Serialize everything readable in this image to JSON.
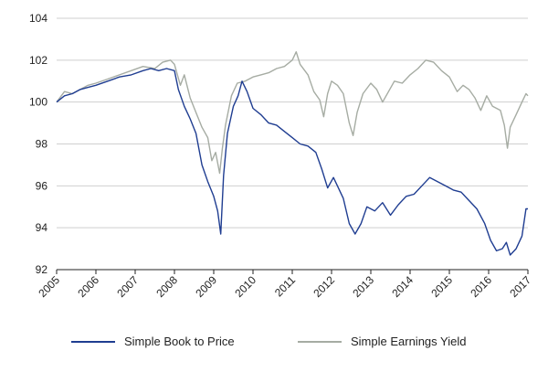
{
  "chart_data": {
    "type": "line",
    "title": "",
    "xlabel": "",
    "ylabel": "",
    "xlim": [
      2005,
      2017
    ],
    "ylim": [
      92,
      104
    ],
    "y_ticks": [
      92,
      94,
      96,
      98,
      100,
      102,
      104
    ],
    "x_ticks": [
      "2005",
      "2006",
      "2007",
      "2008",
      "2009",
      "2010",
      "2011",
      "2012",
      "2013",
      "2014",
      "2015",
      "2016",
      "2017"
    ],
    "grid": "horizontal",
    "legend_position": "bottom",
    "series": [
      {
        "name": "Simple Earnings Yield",
        "color": "#a6aca3",
        "points": [
          [
            2005.0,
            100.0
          ],
          [
            2005.2,
            100.5
          ],
          [
            2005.4,
            100.4
          ],
          [
            2005.6,
            100.6
          ],
          [
            2005.8,
            100.8
          ],
          [
            2006.0,
            100.9
          ],
          [
            2006.3,
            101.1
          ],
          [
            2006.6,
            101.3
          ],
          [
            2006.9,
            101.5
          ],
          [
            2007.2,
            101.7
          ],
          [
            2007.5,
            101.6
          ],
          [
            2007.7,
            101.9
          ],
          [
            2007.9,
            102.0
          ],
          [
            2008.0,
            101.8
          ],
          [
            2008.15,
            100.8
          ],
          [
            2008.25,
            101.3
          ],
          [
            2008.4,
            100.2
          ],
          [
            2008.55,
            99.5
          ],
          [
            2008.7,
            98.8
          ],
          [
            2008.85,
            98.3
          ],
          [
            2008.95,
            97.2
          ],
          [
            2009.05,
            97.6
          ],
          [
            2009.15,
            96.6
          ],
          [
            2009.22,
            97.8
          ],
          [
            2009.3,
            98.9
          ],
          [
            2009.45,
            100.3
          ],
          [
            2009.6,
            100.9
          ],
          [
            2009.8,
            101.0
          ],
          [
            2010.0,
            101.2
          ],
          [
            2010.2,
            101.3
          ],
          [
            2010.4,
            101.4
          ],
          [
            2010.6,
            101.6
          ],
          [
            2010.8,
            101.7
          ],
          [
            2011.0,
            102.0
          ],
          [
            2011.1,
            102.4
          ],
          [
            2011.2,
            101.8
          ],
          [
            2011.4,
            101.3
          ],
          [
            2011.55,
            100.5
          ],
          [
            2011.7,
            100.1
          ],
          [
            2011.8,
            99.3
          ],
          [
            2011.9,
            100.4
          ],
          [
            2012.0,
            101.0
          ],
          [
            2012.15,
            100.8
          ],
          [
            2012.3,
            100.4
          ],
          [
            2012.45,
            99.0
          ],
          [
            2012.55,
            98.4
          ],
          [
            2012.65,
            99.5
          ],
          [
            2012.8,
            100.4
          ],
          [
            2013.0,
            100.9
          ],
          [
            2013.15,
            100.6
          ],
          [
            2013.3,
            100.0
          ],
          [
            2013.45,
            100.5
          ],
          [
            2013.6,
            101.0
          ],
          [
            2013.8,
            100.9
          ],
          [
            2014.0,
            101.3
          ],
          [
            2014.2,
            101.6
          ],
          [
            2014.4,
            102.0
          ],
          [
            2014.6,
            101.9
          ],
          [
            2014.8,
            101.5
          ],
          [
            2015.0,
            101.2
          ],
          [
            2015.2,
            100.5
          ],
          [
            2015.35,
            100.8
          ],
          [
            2015.5,
            100.6
          ],
          [
            2015.65,
            100.2
          ],
          [
            2015.8,
            99.6
          ],
          [
            2015.95,
            100.3
          ],
          [
            2016.1,
            99.8
          ],
          [
            2016.3,
            99.6
          ],
          [
            2016.4,
            98.9
          ],
          [
            2016.48,
            97.8
          ],
          [
            2016.55,
            98.8
          ],
          [
            2016.7,
            99.4
          ],
          [
            2016.85,
            100.0
          ],
          [
            2016.95,
            100.4
          ],
          [
            2017.0,
            100.3
          ]
        ]
      },
      {
        "name": "Simple Book to Price",
        "color": "#1f3d91",
        "points": [
          [
            2005.0,
            100.0
          ],
          [
            2005.2,
            100.3
          ],
          [
            2005.4,
            100.4
          ],
          [
            2005.6,
            100.6
          ],
          [
            2005.8,
            100.7
          ],
          [
            2006.0,
            100.8
          ],
          [
            2006.3,
            101.0
          ],
          [
            2006.6,
            101.2
          ],
          [
            2006.9,
            101.3
          ],
          [
            2007.2,
            101.5
          ],
          [
            2007.4,
            101.6
          ],
          [
            2007.6,
            101.5
          ],
          [
            2007.8,
            101.6
          ],
          [
            2008.0,
            101.5
          ],
          [
            2008.1,
            100.6
          ],
          [
            2008.25,
            99.8
          ],
          [
            2008.4,
            99.2
          ],
          [
            2008.55,
            98.5
          ],
          [
            2008.7,
            97.0
          ],
          [
            2008.85,
            96.2
          ],
          [
            2009.0,
            95.5
          ],
          [
            2009.1,
            94.8
          ],
          [
            2009.18,
            93.7
          ],
          [
            2009.25,
            96.5
          ],
          [
            2009.35,
            98.5
          ],
          [
            2009.5,
            99.8
          ],
          [
            2009.62,
            100.3
          ],
          [
            2009.72,
            101.0
          ],
          [
            2009.85,
            100.5
          ],
          [
            2010.0,
            99.7
          ],
          [
            2010.2,
            99.4
          ],
          [
            2010.4,
            99.0
          ],
          [
            2010.6,
            98.9
          ],
          [
            2010.8,
            98.6
          ],
          [
            2011.0,
            98.3
          ],
          [
            2011.2,
            98.0
          ],
          [
            2011.4,
            97.9
          ],
          [
            2011.6,
            97.6
          ],
          [
            2011.75,
            96.8
          ],
          [
            2011.9,
            95.9
          ],
          [
            2012.05,
            96.4
          ],
          [
            2012.2,
            95.8
          ],
          [
            2012.3,
            95.4
          ],
          [
            2012.45,
            94.2
          ],
          [
            2012.6,
            93.7
          ],
          [
            2012.75,
            94.2
          ],
          [
            2012.9,
            95.0
          ],
          [
            2013.1,
            94.8
          ],
          [
            2013.3,
            95.2
          ],
          [
            2013.5,
            94.6
          ],
          [
            2013.7,
            95.1
          ],
          [
            2013.9,
            95.5
          ],
          [
            2014.1,
            95.6
          ],
          [
            2014.3,
            96.0
          ],
          [
            2014.5,
            96.4
          ],
          [
            2014.7,
            96.2
          ],
          [
            2014.9,
            96.0
          ],
          [
            2015.1,
            95.8
          ],
          [
            2015.3,
            95.7
          ],
          [
            2015.5,
            95.3
          ],
          [
            2015.7,
            94.9
          ],
          [
            2015.9,
            94.2
          ],
          [
            2016.05,
            93.4
          ],
          [
            2016.2,
            92.9
          ],
          [
            2016.35,
            93.0
          ],
          [
            2016.45,
            93.3
          ],
          [
            2016.55,
            92.7
          ],
          [
            2016.7,
            93.0
          ],
          [
            2016.85,
            93.6
          ],
          [
            2016.95,
            94.9
          ],
          [
            2017.0,
            94.9
          ]
        ]
      }
    ]
  }
}
